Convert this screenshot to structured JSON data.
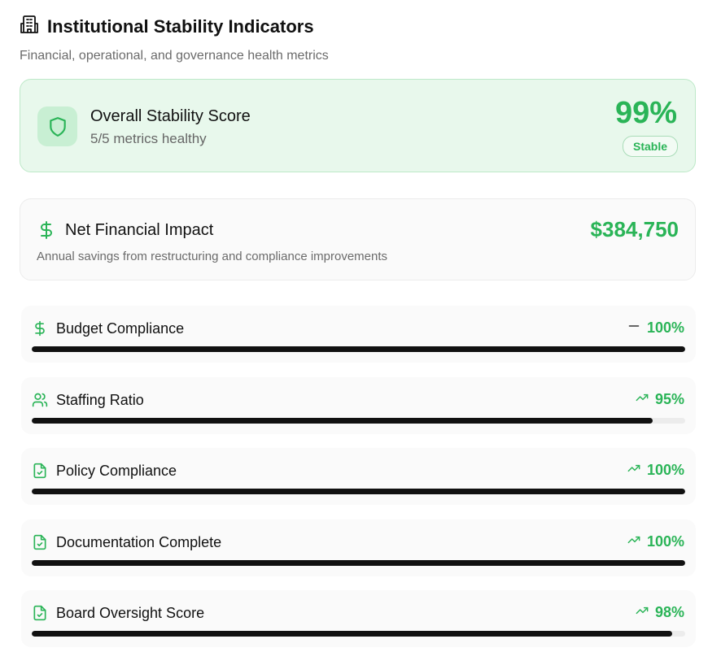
{
  "header": {
    "title": "Institutional Stability Indicators",
    "subtitle": "Financial, operational, and governance health metrics",
    "icon": "building-icon"
  },
  "score": {
    "title": "Overall Stability Score",
    "subtitle": "5/5 metrics healthy",
    "value": "99%",
    "badge": "Stable",
    "icon": "shield-icon"
  },
  "impact": {
    "title": "Net Financial Impact",
    "value": "$384,750",
    "description": "Annual savings from restructuring and compliance improvements",
    "icon": "dollar-icon"
  },
  "metrics": [
    {
      "label": "Budget Compliance",
      "value": "100%",
      "percent": 100,
      "trend": "flat",
      "icon": "dollar-icon"
    },
    {
      "label": "Staffing Ratio",
      "value": "95%",
      "percent": 95,
      "trend": "up",
      "icon": "users-icon"
    },
    {
      "label": "Policy Compliance",
      "value": "100%",
      "percent": 100,
      "trend": "up",
      "icon": "file-check-icon"
    },
    {
      "label": "Documentation Complete",
      "value": "100%",
      "percent": 100,
      "trend": "up",
      "icon": "file-check-icon"
    },
    {
      "label": "Board Oversight Score",
      "value": "98%",
      "percent": 98,
      "trend": "up",
      "icon": "file-check-icon"
    }
  ],
  "colors": {
    "accent": "#2ab457",
    "card_green_bg": "#e8f8ec",
    "bar_fill": "#111111",
    "bar_track": "#ececec"
  }
}
